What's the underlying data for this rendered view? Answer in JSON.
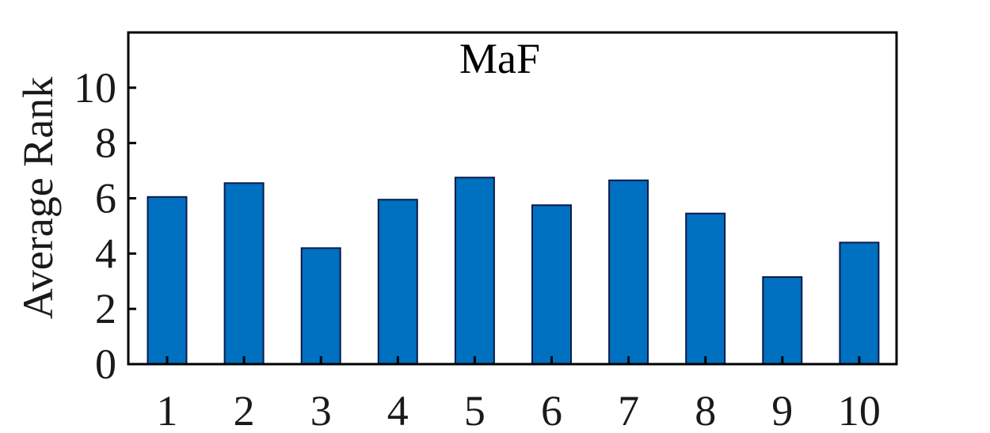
{
  "chart_data": {
    "type": "bar",
    "title": "MaF",
    "xlabel": "",
    "ylabel": "Average Rank",
    "categories": [
      "1",
      "2",
      "3",
      "4",
      "5",
      "6",
      "7",
      "8",
      "9",
      "10"
    ],
    "values": [
      6.05,
      6.55,
      4.2,
      5.95,
      6.75,
      5.75,
      6.65,
      5.45,
      3.15,
      4.4
    ],
    "ylim": [
      0,
      12
    ],
    "yticks": [
      0,
      2,
      4,
      6,
      8,
      10
    ],
    "grid": false,
    "legend": "none",
    "colors": {
      "bar_fill": "#0070c0",
      "bar_edge": "#0b1a4a",
      "axis": "#000000"
    }
  }
}
